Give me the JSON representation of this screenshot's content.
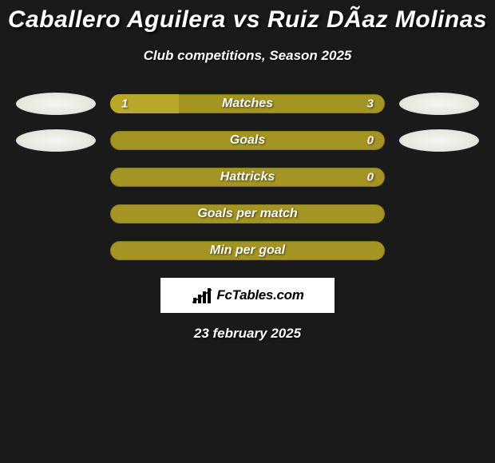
{
  "title": "Caballero Aguilera vs Ruiz DÃ­az Molinas",
  "subtitle": "Club competitions, Season 2025",
  "date": "23 february 2025",
  "logo_text": "FcTables.com",
  "colors": {
    "background": "#1a1a1a",
    "bar_base": "#a39423",
    "bar_left_fill": "#b8a729",
    "text": "#ffffff"
  },
  "stats": [
    {
      "label": "Matches",
      "left_value": "1",
      "right_value": "3",
      "left_pct": 25,
      "show_values": true,
      "show_avatars": true,
      "fill_color": "#b8a729"
    },
    {
      "label": "Goals",
      "left_value": "",
      "right_value": "0",
      "left_pct": 0,
      "show_values": true,
      "show_avatars": true,
      "fill_color": "#b8a729"
    },
    {
      "label": "Hattricks",
      "left_value": "",
      "right_value": "0",
      "left_pct": 0,
      "show_values": true,
      "show_avatars": false,
      "fill_color": "#b8a729"
    },
    {
      "label": "Goals per match",
      "left_value": "",
      "right_value": "",
      "left_pct": 0,
      "show_values": false,
      "show_avatars": false,
      "fill_color": "#b8a729"
    },
    {
      "label": "Min per goal",
      "left_value": "",
      "right_value": "",
      "left_pct": 0,
      "show_values": false,
      "show_avatars": false,
      "fill_color": "#b8a729"
    }
  ]
}
